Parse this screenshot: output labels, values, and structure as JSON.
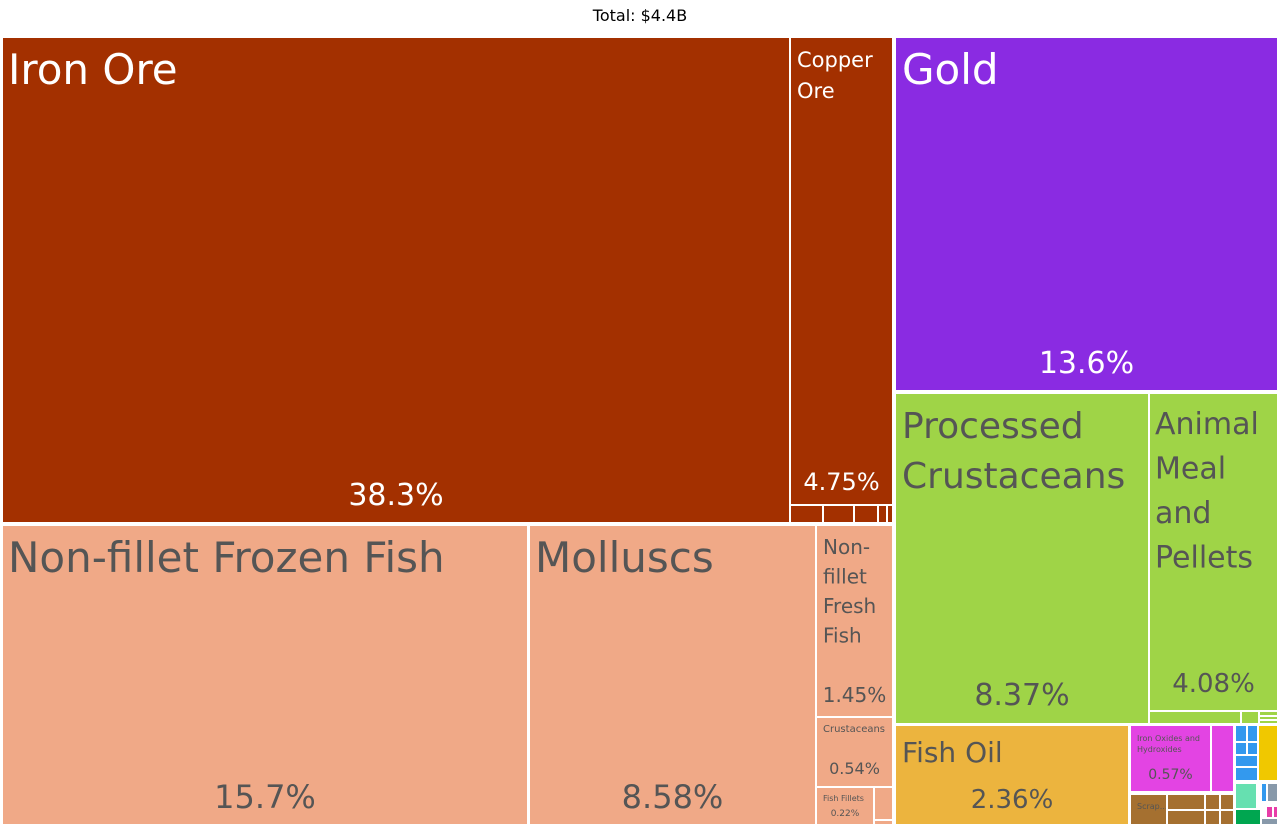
{
  "chart_data": {
    "type": "treemap",
    "title": "Total: $4.4B",
    "colors": {
      "minerals": "#a33000",
      "gold": "#8a2be2",
      "fish_frozen": "#f0a987",
      "animal_products": "#9fd447",
      "fish_oil": "#ecb43e",
      "chemicals": "#e344e3",
      "metals": "#a57030",
      "machinery": "#3399ee",
      "stone": "#f0c800",
      "textiles": "#66e0b0",
      "vegetables": "#00a650",
      "misc": "#e83da8",
      "other": "#8899aa"
    },
    "items": [
      {
        "name": "Iron Ore",
        "share": "38.3%",
        "group": "minerals"
      },
      {
        "name": "Copper Ore",
        "share": "4.75%",
        "group": "minerals"
      },
      {
        "name": "Gold",
        "share": "13.6%",
        "group": "gold"
      },
      {
        "name": "Non-fillet Frozen Fish",
        "share": "15.7%",
        "group": "fish_frozen"
      },
      {
        "name": "Molluscs",
        "share": "8.58%",
        "group": "fish_frozen"
      },
      {
        "name": "Non-fillet Fresh Fish",
        "share": "1.45%",
        "group": "fish_frozen"
      },
      {
        "name": "Crustaceans",
        "share": "0.54%",
        "group": "fish_frozen"
      },
      {
        "name": "Fish Fillets",
        "share": "0.22%",
        "group": "fish_frozen"
      },
      {
        "name": "Processed Crustaceans",
        "share": "8.37%",
        "group": "animal_products"
      },
      {
        "name": "Animal Meal and Pellets",
        "share": "4.08%",
        "group": "animal_products"
      },
      {
        "name": "Fish Oil",
        "share": "2.36%",
        "group": "fish_oil"
      },
      {
        "name": "Iron Oxides and Hydroxides",
        "share": "0.57%",
        "group": "chemicals"
      },
      {
        "name": "Scrap...",
        "share": "",
        "group": "metals"
      }
    ]
  }
}
